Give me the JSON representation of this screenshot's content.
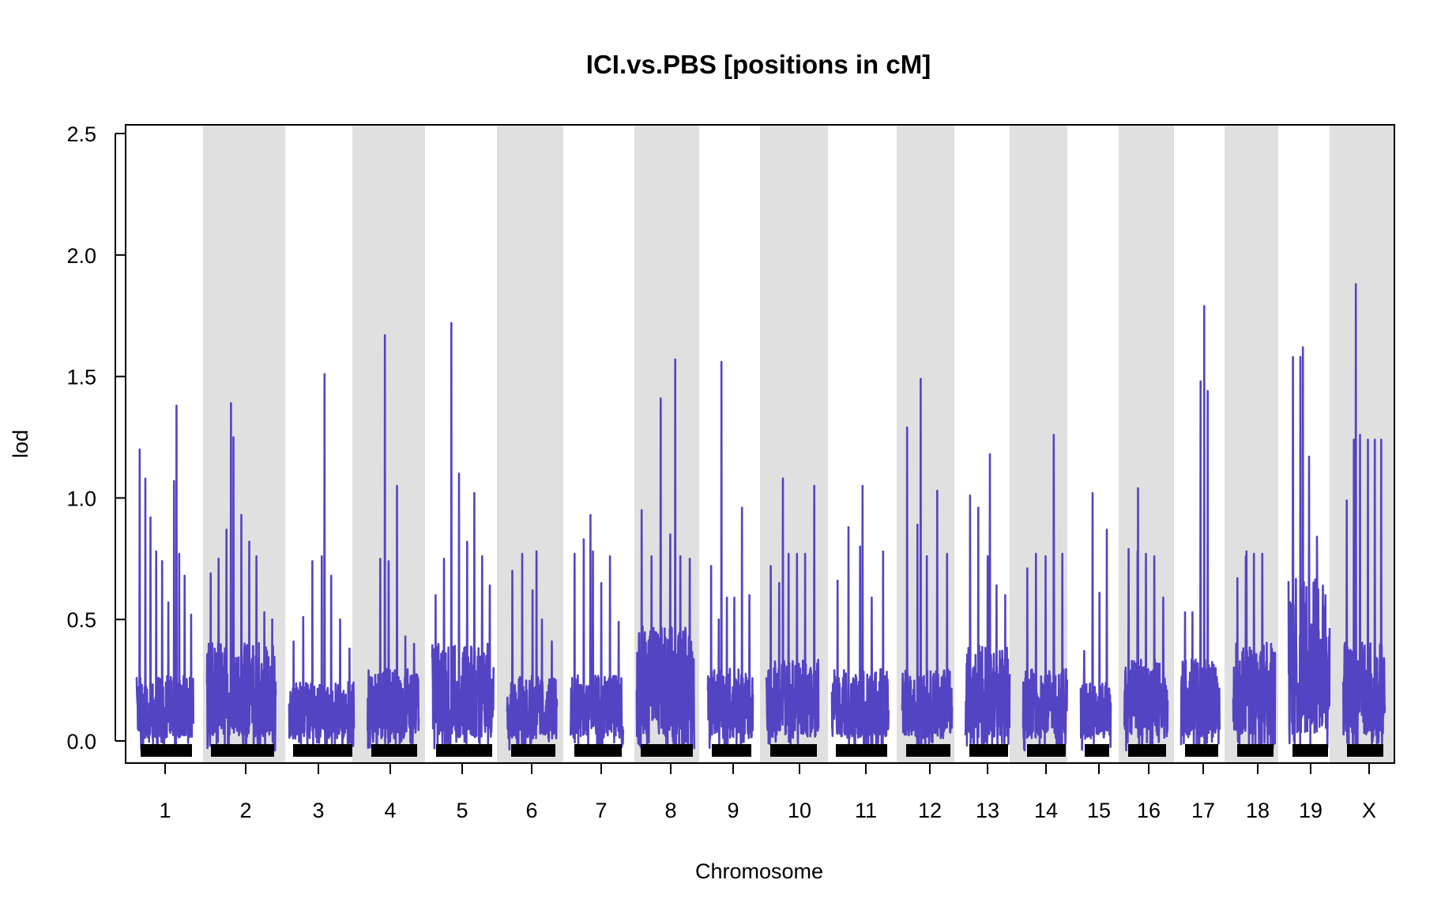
{
  "chart_data": {
    "type": "line",
    "title": "ICI.vs.PBS [positions in cM]",
    "xlabel": "Chromosome",
    "ylabel": "lod",
    "ylim": [
      -0.09,
      2.52
    ],
    "yticks": [
      0.0,
      0.5,
      1.0,
      1.5,
      2.0,
      2.5
    ],
    "ytick_labels": [
      "0.0",
      "0.5",
      "1.0",
      "1.5",
      "2.0",
      "2.5"
    ],
    "line_color": "#5344c4",
    "band_color": "#e0e0e0",
    "rug_color": "#000000",
    "series": [
      {
        "name": "1",
        "peak": 1.38,
        "base": 0.2,
        "spikes": [
          1.2,
          1.08,
          0.92,
          0.78,
          0.74,
          0.57,
          1.07,
          0.77,
          0.68,
          0.52
        ]
      },
      {
        "name": "2",
        "peak": 1.39,
        "base": 0.3,
        "spikes": [
          0.69,
          0.75,
          0.87,
          1.25,
          0.93,
          0.82,
          0.76,
          0.53,
          0.5
        ]
      },
      {
        "name": "3",
        "peak": 1.51,
        "base": 0.18,
        "spikes": [
          0.41,
          0.51,
          0.74,
          0.76,
          0.68,
          0.5,
          0.38
        ]
      },
      {
        "name": "4",
        "peak": 1.67,
        "base": 0.22,
        "spikes": [
          0.26,
          0.75,
          0.74,
          1.05,
          0.43,
          0.4
        ]
      },
      {
        "name": "5",
        "peak": 1.72,
        "base": 0.3,
        "spikes": [
          0.6,
          0.75,
          0.87,
          1.1,
          0.82,
          1.02,
          0.76,
          0.64
        ]
      },
      {
        "name": "6",
        "peak": 0.78,
        "base": 0.2,
        "spikes": [
          0.7,
          0.77,
          0.62,
          0.5,
          0.41
        ]
      },
      {
        "name": "7",
        "peak": 0.93,
        "base": 0.2,
        "spikes": [
          0.77,
          0.83,
          0.78,
          0.65,
          0.76,
          0.49
        ]
      },
      {
        "name": "8",
        "peak": 1.57,
        "base": 0.35,
        "spikes": [
          0.95,
          0.76,
          1.41,
          0.85,
          0.76,
          0.75
        ]
      },
      {
        "name": "9",
        "peak": 1.56,
        "base": 0.22,
        "spikes": [
          0.72,
          0.5,
          0.59,
          0.59,
          0.96,
          0.6
        ]
      },
      {
        "name": "10",
        "peak": 1.08,
        "base": 0.25,
        "spikes": [
          0.72,
          0.65,
          0.77,
          0.77,
          0.77,
          1.05
        ]
      },
      {
        "name": "11",
        "peak": 1.05,
        "base": 0.22,
        "spikes": [
          0.66,
          0.88,
          0.8,
          0.59,
          0.78
        ]
      },
      {
        "name": "12",
        "peak": 1.49,
        "base": 0.22,
        "spikes": [
          1.29,
          0.89,
          0.76,
          1.03,
          0.77
        ]
      },
      {
        "name": "13",
        "peak": 1.18,
        "base": 0.3,
        "spikes": [
          1.01,
          0.96,
          0.76,
          0.64,
          0.6
        ]
      },
      {
        "name": "14",
        "peak": 1.26,
        "base": 0.22,
        "spikes": [
          0.71,
          0.77,
          0.76,
          0.75,
          0.77
        ]
      },
      {
        "name": "15",
        "peak": 1.02,
        "base": 0.18,
        "spikes": [
          0.37,
          0.46,
          0.61,
          0.87
        ]
      },
      {
        "name": "16",
        "peak": 1.04,
        "base": 0.25,
        "spikes": [
          0.79,
          0.78,
          0.77,
          0.76,
          0.59
        ]
      },
      {
        "name": "17",
        "peak": 1.79,
        "base": 0.25,
        "spikes": [
          0.53,
          0.53,
          1.48,
          1.44,
          0.3
        ]
      },
      {
        "name": "18",
        "peak": 0.78,
        "base": 0.3,
        "spikes": [
          0.67,
          0.76,
          0.77,
          0.77,
          0.4
        ]
      },
      {
        "name": "19",
        "peak": 1.62,
        "base": 0.5,
        "spikes": [
          1.58,
          1.58,
          1.17,
          0.84,
          0.6
        ]
      },
      {
        "name": "X",
        "peak": 1.88,
        "base": 0.3,
        "spikes": [
          0.99,
          1.24,
          1.26,
          1.24,
          1.24,
          1.24
        ]
      }
    ]
  }
}
